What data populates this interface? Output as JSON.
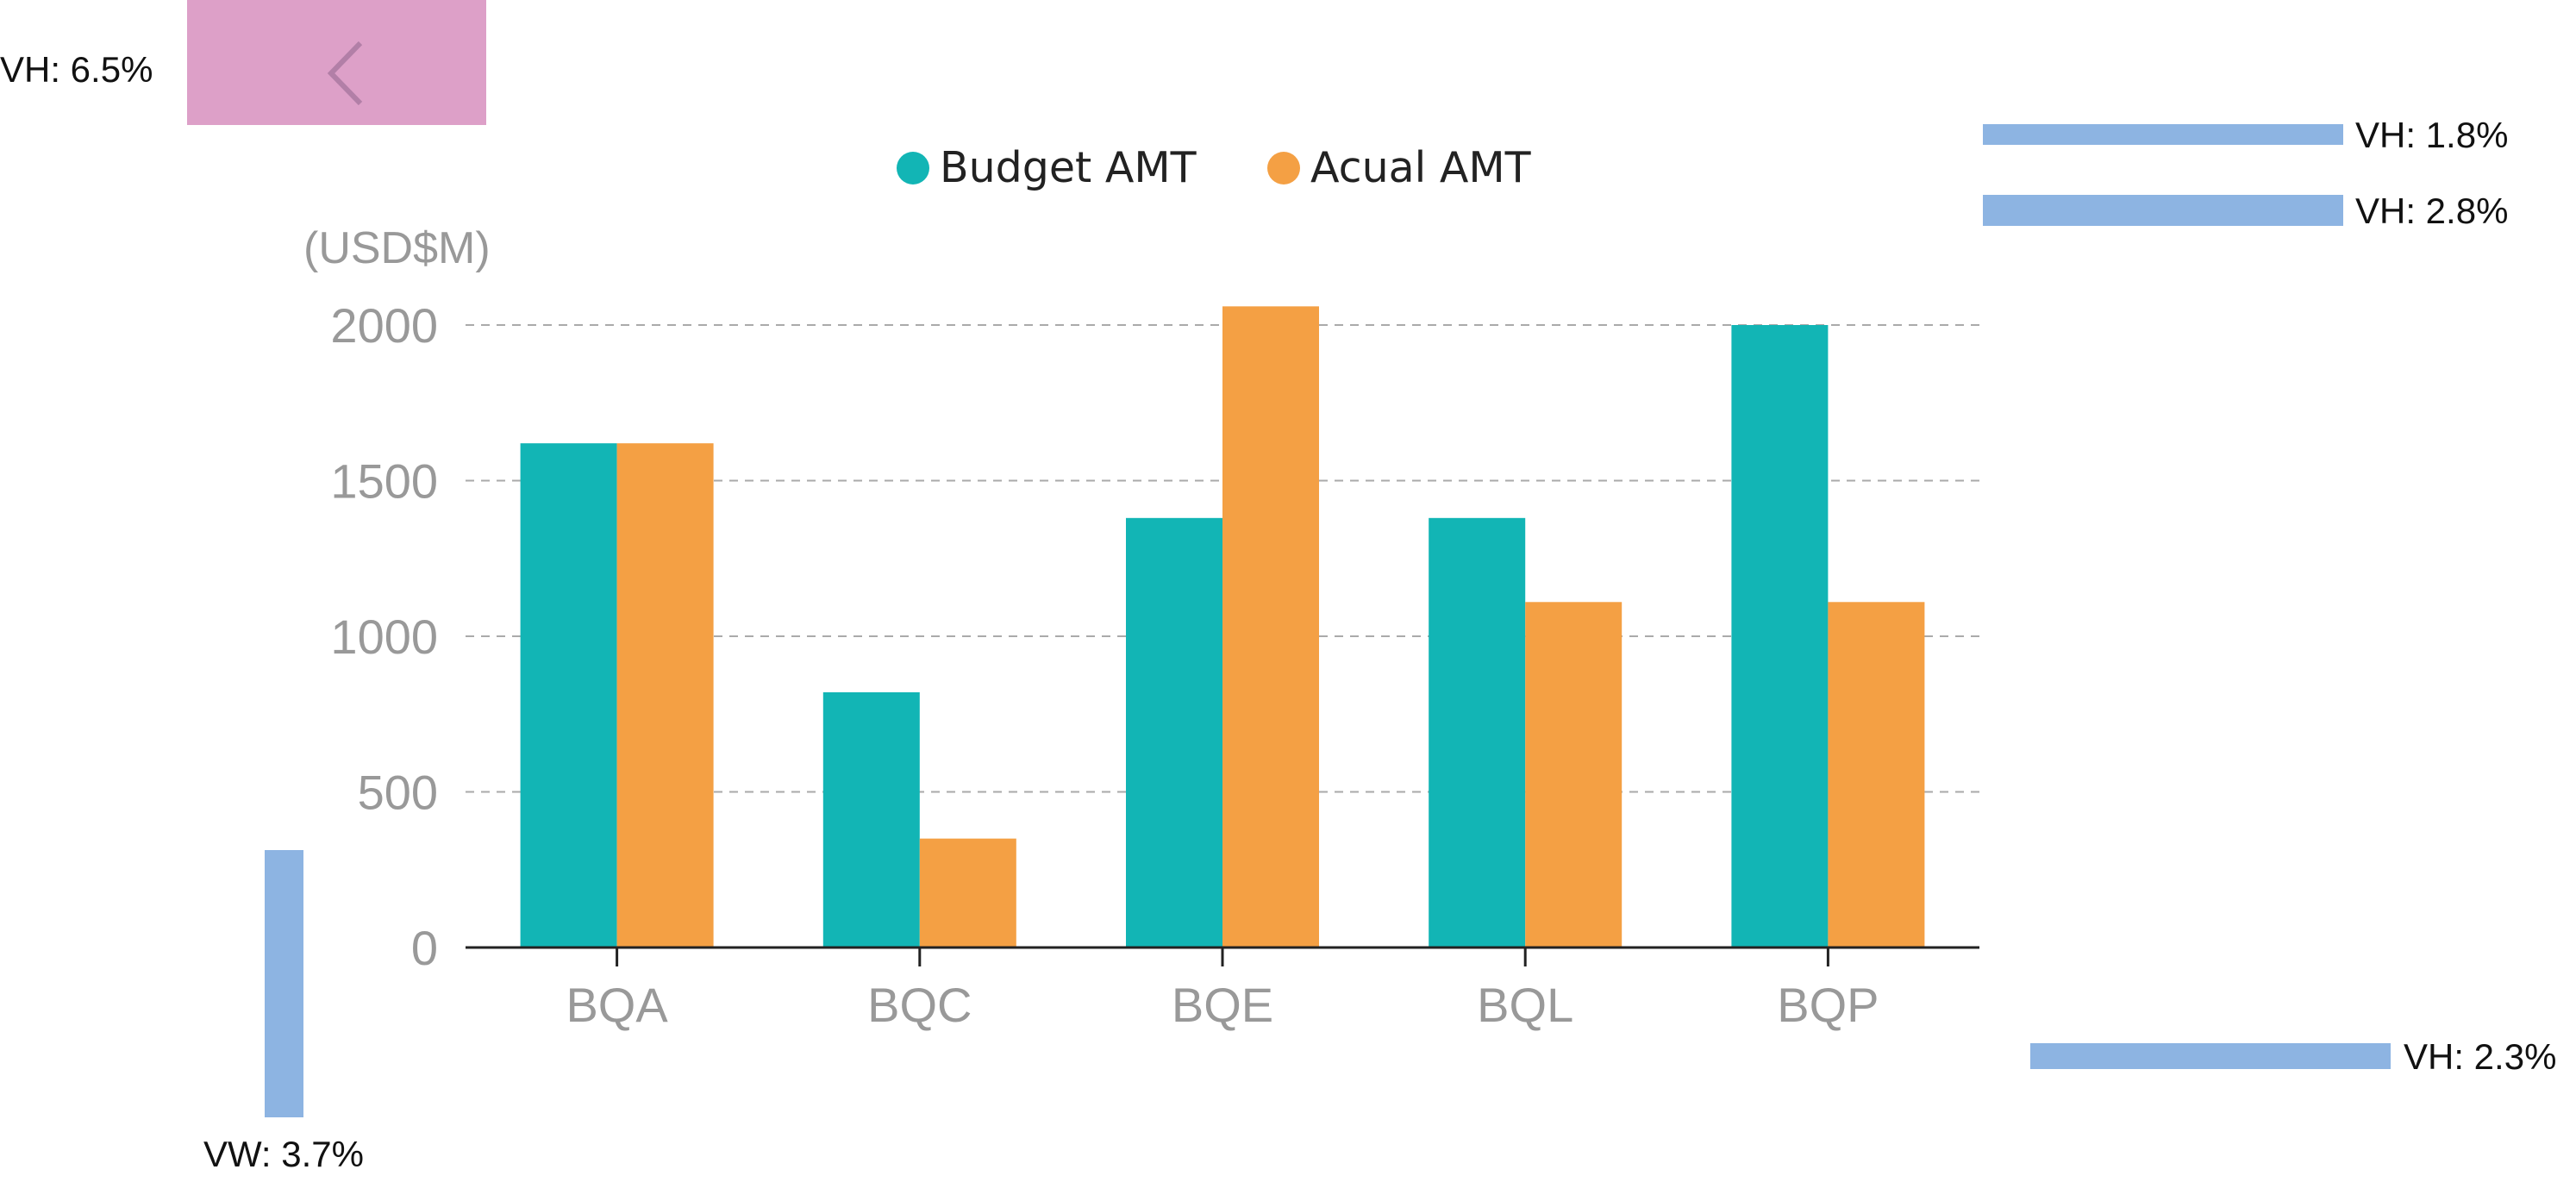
{
  "annotations": {
    "vh_top_left": "VH: 6.5%",
    "vh_top_right_1": "VH: 1.8%",
    "vh_top_right_2": "VH: 2.8%",
    "vh_bottom_right": "VH: 2.3%",
    "vw_bottom_left": "VW: 3.7%"
  },
  "back_button": {
    "icon": "chevron-left-icon"
  },
  "colors": {
    "budget": "#12b5b5",
    "actual": "#f4a044",
    "axis_text": "#999999",
    "grid": "#aaaaaa",
    "pink": "#dda0c8",
    "blue_bar": "#8db4e2"
  },
  "chart_data": {
    "type": "bar",
    "unit_label": "(USD$M)",
    "categories": [
      "BQA",
      "BQC",
      "BQE",
      "BQL",
      "BQP"
    ],
    "series": [
      {
        "name": "Budget AMT",
        "values": [
          1620,
          820,
          1380,
          1380,
          2000
        ]
      },
      {
        "name": "Acual AMT",
        "values": [
          1620,
          350,
          2060,
          1110,
          1110
        ]
      }
    ],
    "ylim": [
      0,
      2000
    ],
    "yticks": [
      0,
      500,
      1000,
      1500,
      2000
    ],
    "grid": true,
    "legend": "top"
  }
}
